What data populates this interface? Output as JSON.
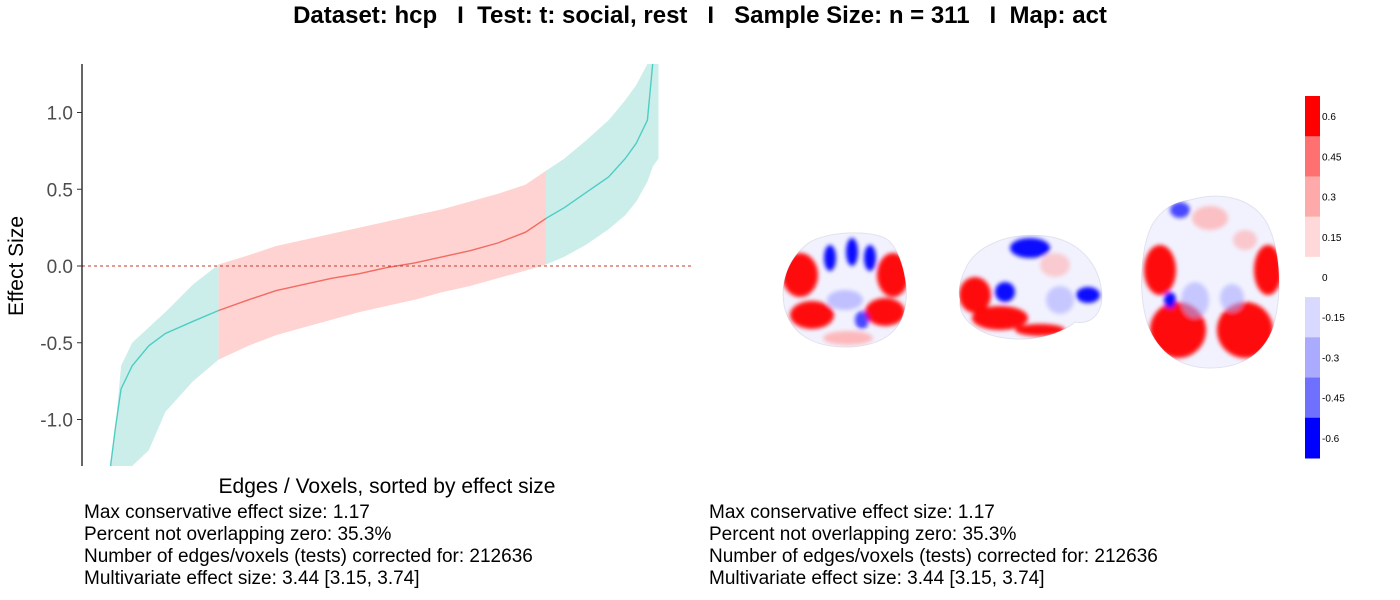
{
  "title": "Dataset: hcp   I  Test: t: social, rest   I   Sample Size: n = 311   I  Map: act",
  "chart_data": {
    "type": "area",
    "xlabel": "Edges / Voxels, sorted by effect size",
    "ylabel": "Effect Size",
    "ylim": [
      -1.33,
      1.33
    ],
    "yticks": [
      -1.0,
      -0.5,
      0.0,
      0.5,
      1.0
    ],
    "ytick_labels": [
      "-1.0",
      "-0.5",
      "0.0",
      "0.5",
      "1.0"
    ],
    "xlim": [
      0,
      1
    ],
    "zero_line": 0,
    "colors": {
      "significant_band": "#cbeeea",
      "nonsignificant_band": "#ffd3d1",
      "significant_line": "#4ecdc4",
      "nonsignificant_line": "#f26a62",
      "zero_line": "#c0392b"
    },
    "significance_breaks": [
      0.196,
      0.787
    ],
    "series": {
      "x": [
        0.0,
        0.01,
        0.02,
        0.04,
        0.07,
        0.1,
        0.15,
        0.196,
        0.25,
        0.3,
        0.35,
        0.4,
        0.45,
        0.5,
        0.55,
        0.6,
        0.65,
        0.7,
        0.75,
        0.787,
        0.82,
        0.86,
        0.9,
        0.93,
        0.95,
        0.97,
        0.98,
        0.99
      ],
      "estimate": [
        -1.33,
        -1.05,
        -0.8,
        -0.65,
        -0.52,
        -0.44,
        -0.36,
        -0.29,
        -0.22,
        -0.16,
        -0.12,
        -0.08,
        -0.05,
        -0.01,
        0.02,
        0.06,
        0.1,
        0.15,
        0.22,
        0.31,
        0.38,
        0.48,
        0.58,
        0.7,
        0.8,
        0.95,
        1.33,
        1.33
      ],
      "lower": [
        -1.33,
        -1.33,
        -1.33,
        -1.33,
        -1.2,
        -0.95,
        -0.75,
        -0.61,
        -0.52,
        -0.45,
        -0.4,
        -0.35,
        -0.3,
        -0.26,
        -0.22,
        -0.17,
        -0.13,
        -0.08,
        -0.03,
        0.01,
        0.06,
        0.14,
        0.24,
        0.33,
        0.42,
        0.55,
        0.65,
        0.7
      ],
      "upper": [
        -1.33,
        -1.05,
        -0.65,
        -0.5,
        -0.4,
        -0.3,
        -0.12,
        0.01,
        0.07,
        0.13,
        0.17,
        0.21,
        0.25,
        0.29,
        0.33,
        0.37,
        0.42,
        0.47,
        0.53,
        0.62,
        0.7,
        0.82,
        0.95,
        1.08,
        1.18,
        1.33,
        1.33,
        1.33
      ]
    }
  },
  "brain_map": {
    "colorbar_labels": [
      "0.6",
      "0.45",
      "0.3",
      "0.15",
      "0",
      "-0.15",
      "-0.3",
      "-0.45",
      "-0.6"
    ],
    "colorbar_colors": [
      "#ff0000",
      "#ff7070",
      "#ffaaaa",
      "#ffd9d9",
      "#ffffff",
      "#d9d9ff",
      "#aaaaff",
      "#7070ff",
      "#0000ff"
    ]
  },
  "stats_left": {
    "line1": "Max conservative effect size: 1.17",
    "line2": "Percent not overlapping zero: 35.3%",
    "line3": "Number of edges/voxels (tests) corrected for: 212636",
    "line4": "Multivariate effect size: 3.44 [3.15, 3.74]"
  },
  "stats_right": {
    "line1": "Max conservative effect size: 1.17",
    "line2": "Percent not overlapping zero: 35.3%",
    "line3": "Number of edges/voxels (tests) corrected for: 212636",
    "line4": "Multivariate effect size: 3.44 [3.15, 3.74]"
  }
}
